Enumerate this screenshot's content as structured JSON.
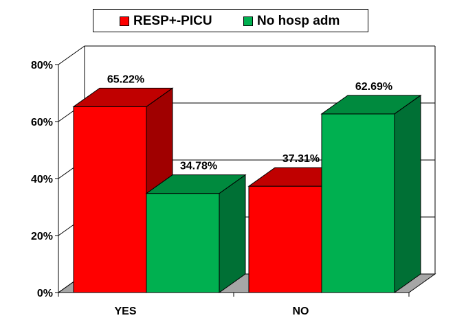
{
  "chart_data": {
    "type": "bar",
    "title": "",
    "xlabel": "",
    "ylabel": "",
    "categories": [
      "YES",
      "NO"
    ],
    "series": [
      {
        "name": "RESP+-PICU",
        "values": [
          65.22,
          37.31
        ],
        "labels": [
          "65.22%",
          "37.31%"
        ],
        "color": "#ff0000",
        "top_color": "#c00000",
        "side_color": "#a00000"
      },
      {
        "name": "No hosp adm",
        "values": [
          34.78,
          62.69
        ],
        "labels": [
          "34.78%",
          "62.69%"
        ],
        "color": "#00b050",
        "top_color": "#008a3e",
        "side_color": "#007035"
      }
    ],
    "ylim": [
      0,
      80
    ],
    "yticks": [
      "0%",
      "20%",
      "40%",
      "60%",
      "80%"
    ],
    "style": "3d-column",
    "grid": true,
    "legend_position": "top"
  }
}
